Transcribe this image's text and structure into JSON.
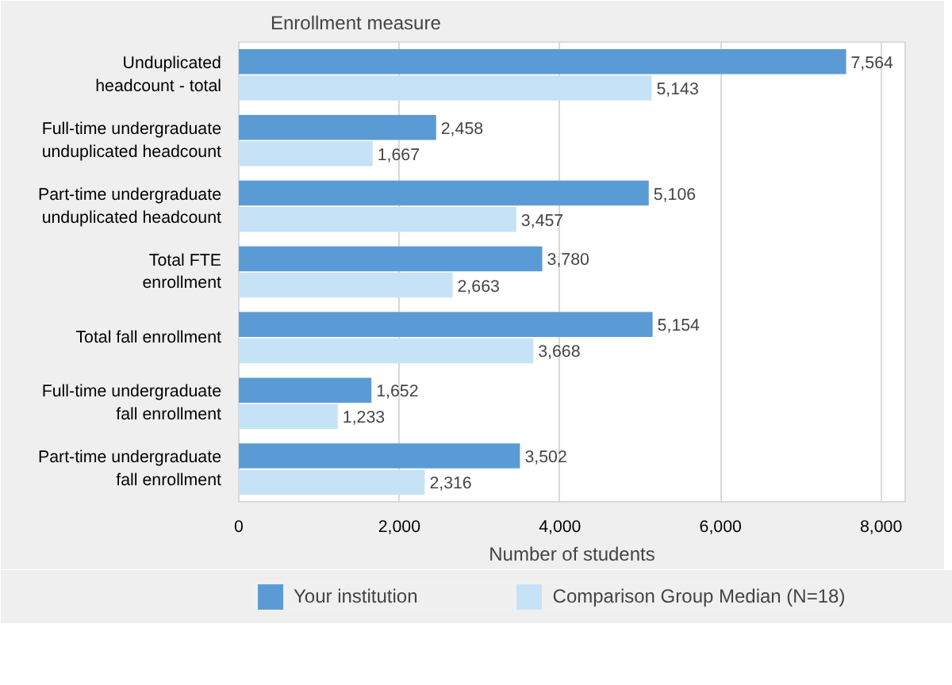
{
  "chart_data": {
    "type": "bar",
    "orientation": "horizontal",
    "ylabel": "Enrollment measure",
    "xlabel": "Number of students",
    "categories": [
      "Unduplicated\nheadcount - total",
      "Full-time undergraduate\nunduplicated headcount",
      "Part-time undergraduate\nunduplicated headcount",
      "Total FTE\nenrollment",
      "Total fall enrollment",
      "Full-time undergraduate\nfall enrollment",
      "Part-time undergraduate\nfall enrollment"
    ],
    "series": [
      {
        "name": "Your institution",
        "color": "#5b9bd5",
        "values": [
          7564,
          2458,
          5106,
          3780,
          5154,
          1652,
          3502
        ],
        "value_labels": [
          "7,564",
          "2,458",
          "5,106",
          "3,780",
          "5,154",
          "1,652",
          "3,502"
        ]
      },
      {
        "name": "Comparison Group Median (N=18)",
        "color": "#c6e2f7",
        "values": [
          5143,
          1667,
          3457,
          2663,
          3668,
          1233,
          2316
        ],
        "value_labels": [
          "5,143",
          "1,667",
          "3,457",
          "2,663",
          "3,668",
          "1,233",
          "2,316"
        ]
      }
    ],
    "xlim": [
      0,
      8300
    ],
    "xticks": [
      {
        "value": 0,
        "label": "0"
      },
      {
        "value": 2000,
        "label": "2,000"
      },
      {
        "value": 4000,
        "label": "4,000"
      },
      {
        "value": 6000,
        "label": "6,000"
      },
      {
        "value": 8000,
        "label": "8,000"
      }
    ],
    "grid": "x",
    "legend": "bottom"
  }
}
